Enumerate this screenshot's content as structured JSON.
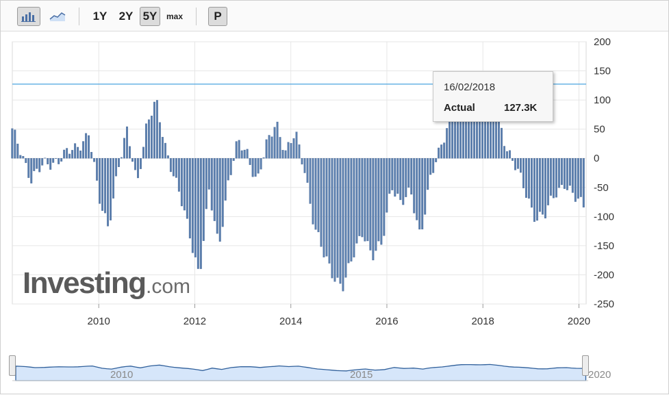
{
  "toolbar": {
    "buttons": [
      {
        "label": "",
        "icon": "bar-chart-icon",
        "selected": true
      },
      {
        "label": "",
        "icon": "area-chart-icon",
        "selected": false
      },
      {
        "label": "1Y",
        "selected": false
      },
      {
        "label": "2Y",
        "selected": false
      },
      {
        "label": "5Y",
        "selected": true
      },
      {
        "label": "max",
        "selected": false
      },
      {
        "label": "P",
        "selected": false
      }
    ]
  },
  "logo": {
    "part1": "Investing",
    "part2": ".com"
  },
  "tooltip": {
    "date": "16/02/2018",
    "label": "Actual",
    "value": "127.3K"
  },
  "colors": {
    "bar": "#5b7fae",
    "bar_edge": "#3e5f8f",
    "ref_line": "#4aa3df",
    "grid": "#e6e6e6",
    "nav_fill": "#d6e6fa",
    "nav_line": "#2f5f9a"
  },
  "navigator": {
    "labels": [
      "2010",
      "2015",
      "2020"
    ]
  },
  "chart_data": {
    "type": "bar",
    "x_tick_labels": [
      "2010",
      "2012",
      "2014",
      "2016",
      "2018",
      "2020"
    ],
    "y_tick_labels": [
      "200",
      "150",
      "100",
      "50",
      "0",
      "-50",
      "-100",
      "-150",
      "-200",
      "-250"
    ],
    "ylim": [
      -250,
      200
    ],
    "xlim": [
      2008.2,
      2020.15
    ],
    "grid": true,
    "reference_line": 127.3,
    "x": [
      2008.2,
      2008.4,
      2008.6,
      2008.9,
      2009.2,
      2009.5,
      2009.8,
      2010.0,
      2010.2,
      2010.4,
      2010.6,
      2010.8,
      2011.0,
      2011.2,
      2011.4,
      2011.6,
      2011.9,
      2012.1,
      2012.3,
      2012.5,
      2012.7,
      2012.9,
      2013.1,
      2013.3,
      2013.5,
      2013.7,
      2013.9,
      2014.1,
      2014.3,
      2014.5,
      2014.7,
      2014.9,
      2015.1,
      2015.3,
      2015.5,
      2015.7,
      2015.9,
      2016.1,
      2016.3,
      2016.5,
      2016.7,
      2016.9,
      2017.1,
      2017.3,
      2017.5,
      2017.7,
      2017.9,
      2018.1,
      2018.3,
      2018.5,
      2018.7,
      2018.9,
      2019.1,
      2019.3,
      2019.5,
      2019.7,
      2019.9,
      2020.1
    ],
    "values": [
      45,
      10,
      -35,
      -10,
      0,
      15,
      45,
      -70,
      -115,
      -20,
      45,
      -40,
      55,
      95,
      20,
      -40,
      -130,
      -200,
      -60,
      -150,
      -40,
      25,
      10,
      -40,
      20,
      65,
      10,
      40,
      -20,
      -120,
      -170,
      -200,
      -220,
      -170,
      -120,
      -170,
      -150,
      -40,
      -80,
      -60,
      -130,
      -40,
      10,
      70,
      120,
      140,
      127,
      130,
      80,
      20,
      -20,
      -60,
      -100,
      -100,
      -60,
      -40,
      -70,
      -80
    ]
  }
}
